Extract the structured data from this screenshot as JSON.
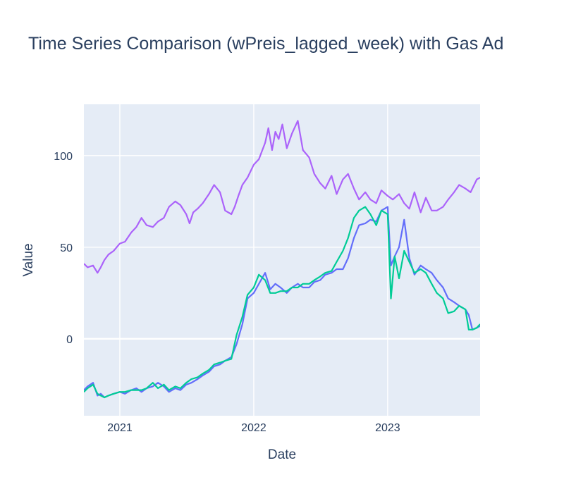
{
  "chart_data": {
    "type": "line",
    "title": "Time Series Comparison (wPreis_lagged_week) with Gas Ad",
    "xlabel": "Date",
    "ylabel": "Value",
    "xlim": [
      "2020-09-25",
      "2023-09-10"
    ],
    "ylim": [
      -42,
      128
    ],
    "x_ticks": [
      "2021-01-01",
      "2022-01-01",
      "2023-01-01"
    ],
    "x_tick_labels": [
      "2021",
      "2022",
      "2023"
    ],
    "y_ticks": [
      0,
      50,
      100
    ],
    "y_tick_labels": [
      "0",
      "50",
      "100"
    ],
    "grid": true,
    "legend": "none",
    "colors": {
      "purple": "#ab63fa",
      "blue": "#636efa",
      "green": "#00cc96",
      "plot_bg": "#e5ecf6",
      "grid": "#ffffff",
      "text": "#2a3f5f"
    },
    "series": [
      {
        "color": "#ab63fa",
        "x": [
          "2020-09-25",
          "2020-10-05",
          "2020-10-20",
          "2020-11-01",
          "2020-11-10",
          "2020-11-20",
          "2020-12-01",
          "2020-12-15",
          "2021-01-01",
          "2021-01-15",
          "2021-02-01",
          "2021-02-15",
          "2021-03-01",
          "2021-03-15",
          "2021-04-01",
          "2021-04-15",
          "2021-05-01",
          "2021-05-15",
          "2021-06-01",
          "2021-06-15",
          "2021-07-01",
          "2021-07-10",
          "2021-07-20",
          "2021-08-01",
          "2021-08-15",
          "2021-09-01",
          "2021-09-15",
          "2021-10-01",
          "2021-10-15",
          "2021-11-01",
          "2021-11-10",
          "2021-11-20",
          "2021-12-01",
          "2021-12-15",
          "2022-01-01",
          "2022-01-15",
          "2022-02-01",
          "2022-02-10",
          "2022-02-20",
          "2022-03-01",
          "2022-03-10",
          "2022-03-20",
          "2022-04-01",
          "2022-04-15",
          "2022-05-01",
          "2022-05-15",
          "2022-06-01",
          "2022-06-15",
          "2022-07-01",
          "2022-07-15",
          "2022-08-01",
          "2022-08-15",
          "2022-09-01",
          "2022-09-15",
          "2022-10-01",
          "2022-10-15",
          "2022-11-01",
          "2022-11-15",
          "2022-12-01",
          "2022-12-15",
          "2023-01-01",
          "2023-01-15",
          "2023-02-01",
          "2023-02-15",
          "2023-03-01",
          "2023-03-15",
          "2023-04-01",
          "2023-04-15",
          "2023-05-01",
          "2023-05-15",
          "2023-06-01",
          "2023-06-15",
          "2023-07-01",
          "2023-07-15",
          "2023-08-01",
          "2023-08-15",
          "2023-09-01",
          "2023-09-10"
        ],
        "y": [
          41,
          39,
          40,
          36,
          39,
          43,
          46,
          48,
          52,
          53,
          58,
          61,
          66,
          62,
          61,
          64,
          66,
          72,
          75,
          73,
          68,
          63,
          69,
          71,
          74,
          79,
          84,
          80,
          70,
          68,
          72,
          78,
          84,
          88,
          95,
          98,
          107,
          115,
          103,
          113,
          109,
          117,
          104,
          112,
          119,
          103,
          99,
          90,
          85,
          82,
          89,
          79,
          87,
          90,
          82,
          76,
          80,
          76,
          74,
          81,
          78,
          76,
          79,
          74,
          71,
          80,
          69,
          77,
          70,
          70,
          72,
          76,
          80,
          84,
          82,
          80,
          87,
          88
        ]
      },
      {
        "color": "#636efa",
        "x": [
          "2020-09-25",
          "2020-10-05",
          "2020-10-20",
          "2020-11-01",
          "2020-11-10",
          "2020-11-20",
          "2020-12-01",
          "2020-12-15",
          "2021-01-01",
          "2021-01-15",
          "2021-02-01",
          "2021-02-15",
          "2021-03-01",
          "2021-03-15",
          "2021-04-01",
          "2021-04-15",
          "2021-05-01",
          "2021-05-15",
          "2021-06-01",
          "2021-06-15",
          "2021-07-01",
          "2021-07-15",
          "2021-08-01",
          "2021-08-15",
          "2021-09-01",
          "2021-09-15",
          "2021-10-01",
          "2021-10-15",
          "2021-11-01",
          "2021-11-15",
          "2021-12-01",
          "2021-12-15",
          "2022-01-01",
          "2022-01-15",
          "2022-02-01",
          "2022-02-15",
          "2022-03-01",
          "2022-03-15",
          "2022-04-01",
          "2022-04-15",
          "2022-05-01",
          "2022-05-15",
          "2022-06-01",
          "2022-06-15",
          "2022-07-01",
          "2022-07-15",
          "2022-08-01",
          "2022-08-15",
          "2022-09-01",
          "2022-09-15",
          "2022-10-01",
          "2022-10-15",
          "2022-11-01",
          "2022-11-15",
          "2022-12-01",
          "2022-12-15",
          "2023-01-01",
          "2023-01-10",
          "2023-01-20",
          "2023-02-01",
          "2023-02-15",
          "2023-03-01",
          "2023-03-15",
          "2023-04-01",
          "2023-04-15",
          "2023-05-01",
          "2023-05-15",
          "2023-06-01",
          "2023-06-15",
          "2023-07-01",
          "2023-07-15",
          "2023-08-01",
          "2023-08-10",
          "2023-08-20",
          "2023-09-01",
          "2023-09-10"
        ],
        "y": [
          -28,
          -26,
          -24,
          -31,
          -30,
          -32,
          -31,
          -30,
          -29,
          -30,
          -28,
          -27,
          -29,
          -27,
          -26,
          -24,
          -26,
          -29,
          -27,
          -28,
          -25,
          -24,
          -22,
          -20,
          -18,
          -15,
          -14,
          -12,
          -10,
          -3,
          8,
          22,
          25,
          30,
          36,
          27,
          30,
          28,
          25,
          28,
          30,
          28,
          28,
          31,
          32,
          35,
          36,
          38,
          38,
          44,
          55,
          62,
          63,
          65,
          64,
          70,
          72,
          40,
          45,
          50,
          65,
          44,
          35,
          40,
          38,
          36,
          32,
          28,
          22,
          20,
          18,
          16,
          13,
          5,
          6,
          7
        ]
      },
      {
        "color": "#00cc96",
        "x": [
          "2020-09-25",
          "2020-10-05",
          "2020-10-20",
          "2020-11-01",
          "2020-11-10",
          "2020-11-20",
          "2020-12-01",
          "2020-12-15",
          "2021-01-01",
          "2021-01-15",
          "2021-02-01",
          "2021-02-15",
          "2021-03-01",
          "2021-03-15",
          "2021-04-01",
          "2021-04-15",
          "2021-05-01",
          "2021-05-15",
          "2021-06-01",
          "2021-06-15",
          "2021-07-01",
          "2021-07-15",
          "2021-08-01",
          "2021-08-15",
          "2021-09-01",
          "2021-09-15",
          "2021-10-01",
          "2021-10-15",
          "2021-11-01",
          "2021-11-15",
          "2021-12-01",
          "2021-12-15",
          "2022-01-01",
          "2022-01-15",
          "2022-02-01",
          "2022-02-15",
          "2022-03-01",
          "2022-03-15",
          "2022-04-01",
          "2022-04-15",
          "2022-05-01",
          "2022-05-15",
          "2022-06-01",
          "2022-06-15",
          "2022-07-01",
          "2022-07-15",
          "2022-08-01",
          "2022-08-15",
          "2022-09-01",
          "2022-09-15",
          "2022-10-01",
          "2022-10-15",
          "2022-11-01",
          "2022-11-15",
          "2022-12-01",
          "2022-12-15",
          "2023-01-01",
          "2023-01-10",
          "2023-01-20",
          "2023-02-01",
          "2023-02-15",
          "2023-03-01",
          "2023-03-15",
          "2023-04-01",
          "2023-04-15",
          "2023-05-01",
          "2023-05-15",
          "2023-06-01",
          "2023-06-15",
          "2023-07-01",
          "2023-07-15",
          "2023-08-01",
          "2023-08-10",
          "2023-08-20",
          "2023-09-01",
          "2023-09-10"
        ],
        "y": [
          -29,
          -27,
          -25,
          -30,
          -31,
          -32,
          -31,
          -30,
          -29,
          -29,
          -28,
          -28,
          -28,
          -27,
          -24,
          -27,
          -25,
          -28,
          -26,
          -27,
          -24,
          -22,
          -21,
          -19,
          -17,
          -14,
          -13,
          -12,
          -11,
          2,
          12,
          24,
          28,
          35,
          32,
          25,
          25,
          26,
          26,
          28,
          28,
          30,
          30,
          32,
          34,
          36,
          37,
          42,
          48,
          55,
          66,
          70,
          72,
          68,
          62,
          70,
          68,
          22,
          45,
          33,
          48,
          42,
          36,
          38,
          36,
          30,
          25,
          22,
          14,
          15,
          18,
          16,
          5,
          5,
          6,
          8
        ]
      }
    ]
  }
}
